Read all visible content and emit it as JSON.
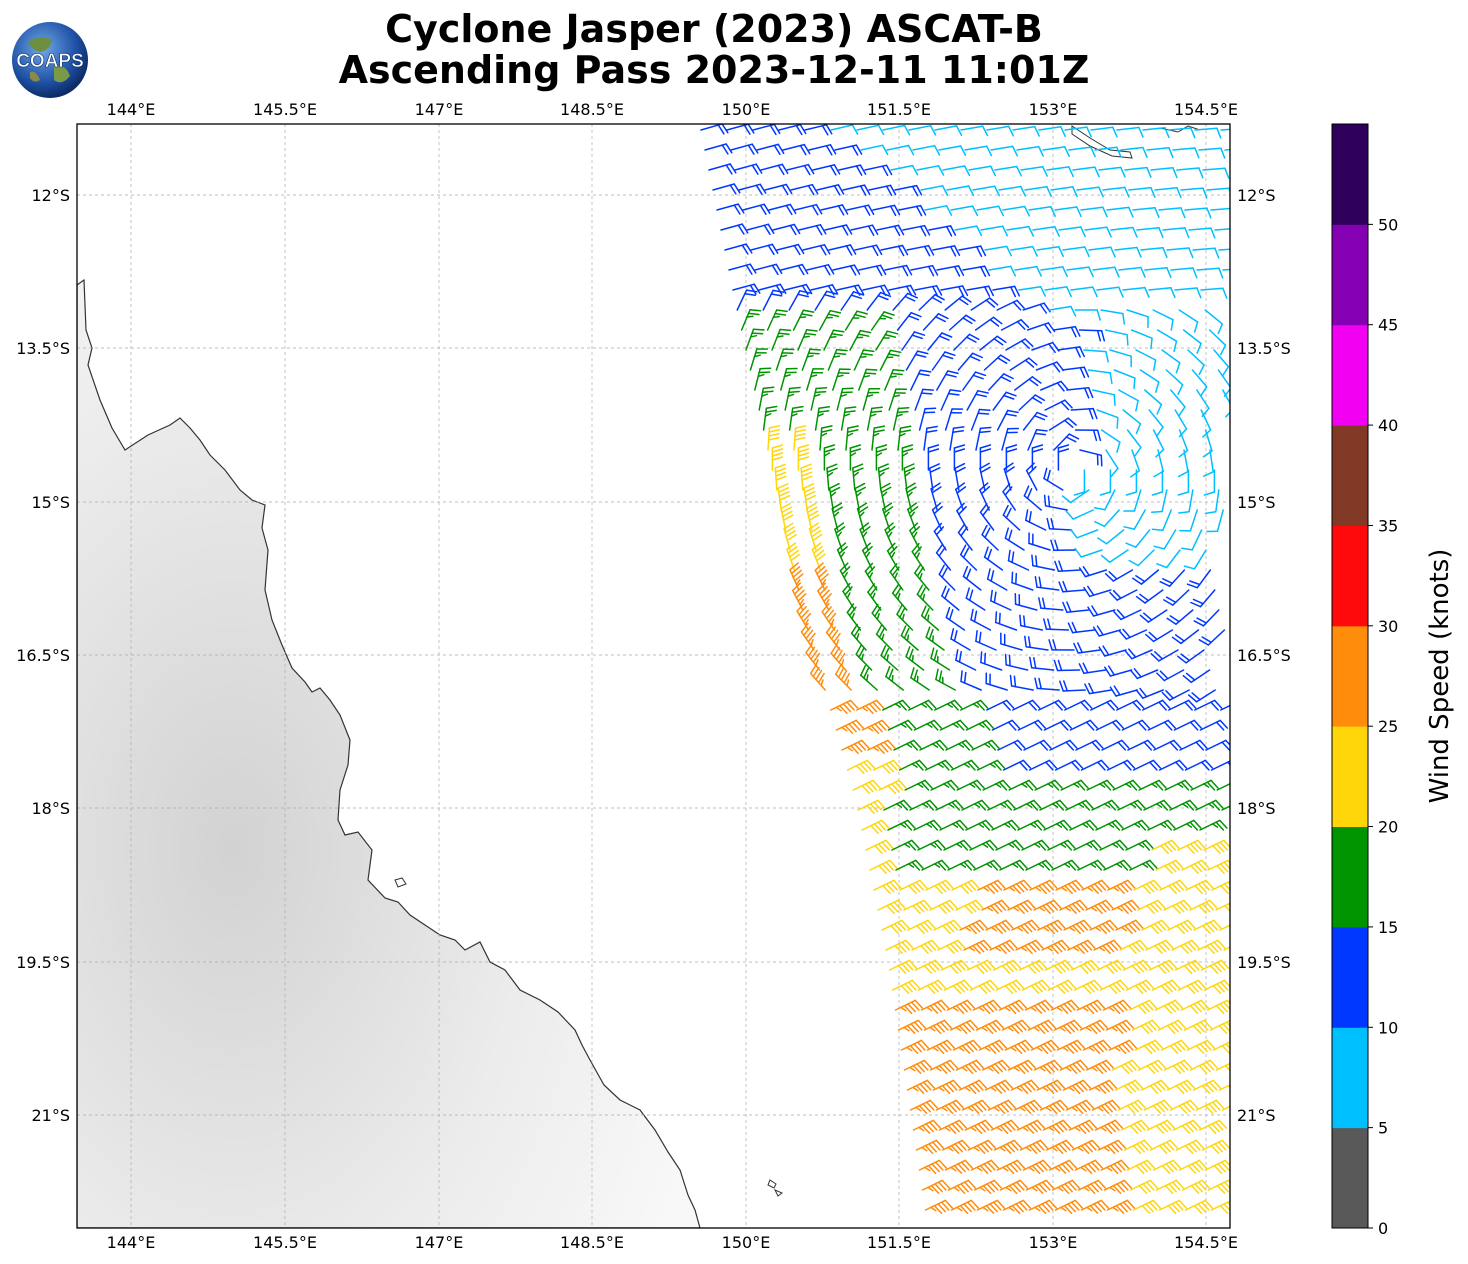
{
  "title_line1": "Cyclone Jasper (2023) ASCAT-B",
  "title_line2": "Ascending Pass 2023-12-11 11:01Z",
  "logo_text": "COAPS",
  "lon_ticks": [
    "144°E",
    "145.5°E",
    "147°E",
    "148.5°E",
    "150°E",
    "151.5°E",
    "153°E",
    "154.5°E"
  ],
  "lat_ticks": [
    "12°S",
    "13.5°S",
    "15°S",
    "16.5°S",
    "18°S",
    "19.5°S",
    "21°S"
  ],
  "colorbar": {
    "label": "Wind Speed (knots)",
    "tick_labels": [
      "0",
      "5",
      "10",
      "15",
      "20",
      "25",
      "30",
      "35",
      "40",
      "45",
      "50"
    ],
    "bins": [
      {
        "range": [
          0,
          5
        ],
        "color": "#595959"
      },
      {
        "range": [
          5,
          10
        ],
        "color": "#00bfff"
      },
      {
        "range": [
          10,
          15
        ],
        "color": "#0038ff"
      },
      {
        "range": [
          15,
          20
        ],
        "color": "#009400"
      },
      {
        "range": [
          20,
          25
        ],
        "color": "#ffd60a"
      },
      {
        "range": [
          25,
          30
        ],
        "color": "#ff8c0a"
      },
      {
        "range": [
          30,
          35
        ],
        "color": "#ff0a0a"
      },
      {
        "range": [
          35,
          40
        ],
        "color": "#823a27"
      },
      {
        "range": [
          40,
          45
        ],
        "color": "#f200f2"
      },
      {
        "range": [
          45,
          50
        ],
        "color": "#8400b2"
      },
      {
        "range": [
          50,
          55
        ],
        "color": "#2e005c"
      }
    ]
  },
  "map_extent": {
    "lon": [
      143.47,
      154.75
    ],
    "lat": [
      -11.3,
      -22.1
    ]
  },
  "wind_regions": [
    {
      "name": "north-east",
      "speed_range_kt": [
        5,
        10
      ],
      "color": "#00bfff"
    },
    {
      "name": "north-west",
      "speed_range_kt": [
        10,
        15
      ],
      "color": "#0038ff"
    },
    {
      "name": "west-center",
      "speed_range_kt": [
        15,
        20
      ],
      "color": "#009400"
    },
    {
      "name": "southwest-edge",
      "speed_range_kt": [
        20,
        30
      ],
      "color": "#ffd60a"
    },
    {
      "name": "south",
      "speed_range_kt": [
        25,
        30
      ],
      "color": "#ff8c0a"
    }
  ]
}
